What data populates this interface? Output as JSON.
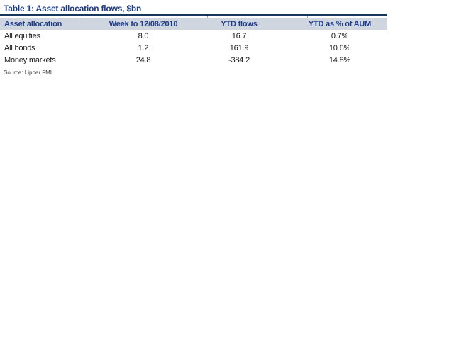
{
  "table": {
    "title": "Table 1: Asset allocation flows, $bn",
    "columns": [
      "Asset allocation",
      "Week to 12/08/2010",
      "YTD flows",
      "YTD as % of AUM"
    ],
    "rows": [
      {
        "label": "All equities",
        "week_flow": "8.0",
        "ytd_flows": "16.7",
        "ytd_pct_aum": "0.7%"
      },
      {
        "label": "All bonds",
        "week_flow": "1.2",
        "ytd_flows": "161.9",
        "ytd_pct_aum": "10.6%"
      },
      {
        "label": "Money markets",
        "week_flow": "24.8",
        "ytd_flows": "-384.2",
        "ytd_pct_aum": "14.8%"
      }
    ],
    "source": "Source: Lipper FMI"
  },
  "colors": {
    "title_text": "#1E3C8C",
    "header_text": "#1E3C8C",
    "header_background": "#D0D6E0",
    "title_rule": "#17365D",
    "column_tick": "#95A9CE",
    "body_text": "#1a1a1a",
    "source_text": "#3C3C3C",
    "page_background": "#FFFFFF"
  }
}
